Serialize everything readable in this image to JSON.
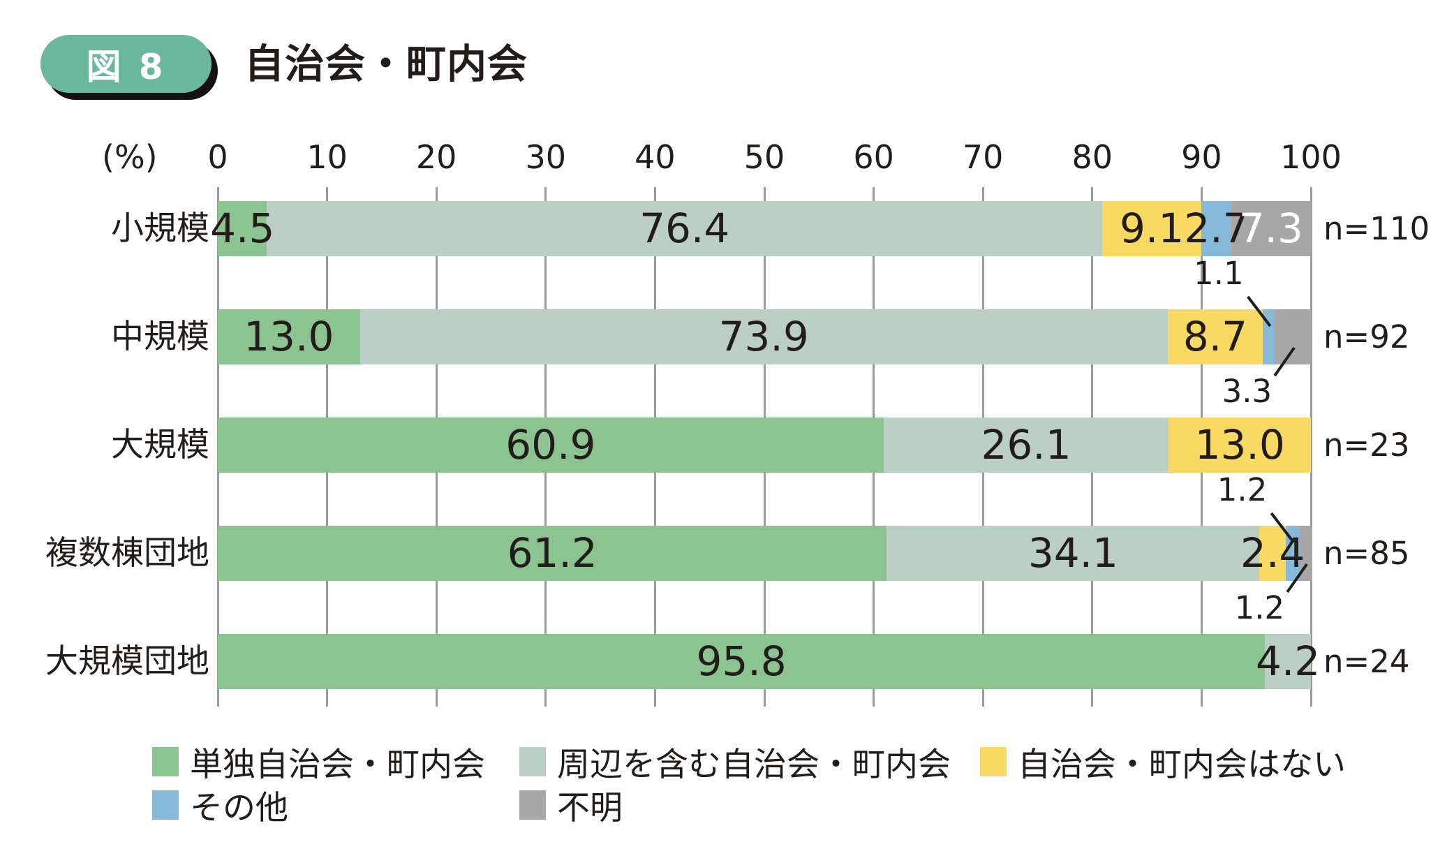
{
  "header": {
    "badge": "図 8",
    "title": "自治会・町内会"
  },
  "axis": {
    "unit_label": "(%)"
  },
  "colors": {
    "badge_bg": "#6ab79e",
    "badge_shadow": "#161110",
    "text": "#221d1a",
    "grid": "#9b9b9b",
    "label_on_gray": "#ffffff",
    "green": "#8bc491",
    "sage": "#bccfc5",
    "yellow": "#f7d964",
    "blue": "#86b8d8",
    "gray": "#a7a7a8"
  },
  "chart_data": {
    "type": "bar",
    "stacked": true,
    "orientation": "horizontal",
    "unit": "%",
    "xlim": [
      0,
      100
    ],
    "x_ticks": [
      0,
      10,
      20,
      30,
      40,
      50,
      60,
      70,
      80,
      90,
      100
    ],
    "grid": true,
    "categories": [
      "小規模",
      "中規模",
      "大規模",
      "複数棟団地",
      "大規模団地"
    ],
    "n_labels": [
      "n=110",
      "n=92",
      "n=23",
      "n=85",
      "n=24"
    ],
    "series": [
      {
        "name": "単独自治会・町内会",
        "color_key": "green",
        "values": [
          4.5,
          13.0,
          60.9,
          61.2,
          95.8
        ]
      },
      {
        "name": "周辺を含む自治会・町内会",
        "color_key": "sage",
        "values": [
          76.4,
          73.9,
          26.1,
          34.1,
          4.2
        ]
      },
      {
        "name": "自治会・町内会はない",
        "color_key": "yellow",
        "values": [
          9.1,
          8.7,
          13.0,
          2.4,
          null
        ]
      },
      {
        "name": "その他",
        "color_key": "blue",
        "values": [
          2.7,
          1.1,
          null,
          1.2,
          null
        ]
      },
      {
        "name": "不明",
        "color_key": "gray",
        "values": [
          7.3,
          3.3,
          null,
          1.2,
          null
        ]
      }
    ],
    "callouts": [
      {
        "row": 1,
        "series": 3,
        "side": "above"
      },
      {
        "row": 1,
        "series": 4,
        "side": "below"
      },
      {
        "row": 3,
        "series": 3,
        "side": "above"
      },
      {
        "row": 3,
        "series": 4,
        "side": "below"
      }
    ],
    "legend_position": "bottom"
  }
}
